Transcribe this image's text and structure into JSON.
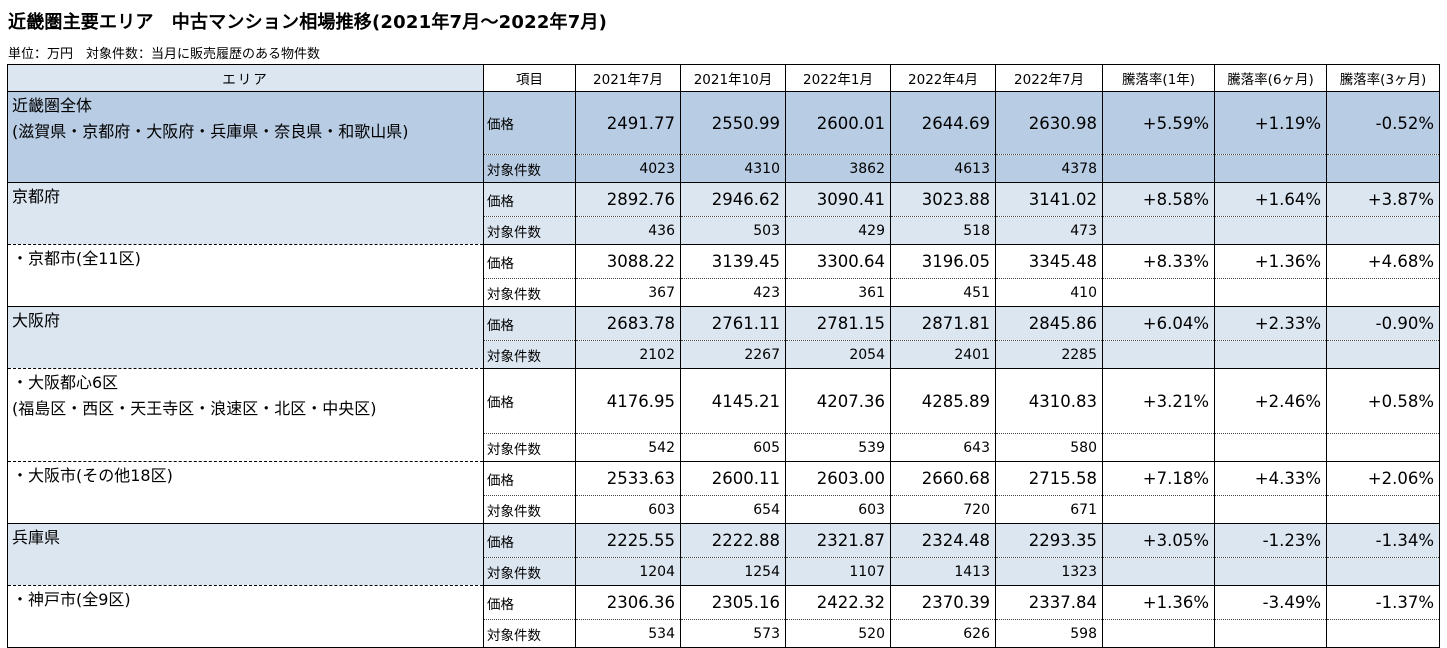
{
  "title": "近畿圏主要エリア　中古マンション相場推移(2021年7月～2022年7月)",
  "subtitle": "単位：万円　対象件数：当月に販売履歴のある物件数",
  "headers": [
    "エリア",
    "項目",
    "2021年7月",
    "2021年10月",
    "2022年1月",
    "2022年4月",
    "2022年7月",
    "騰落率(1年)",
    "騰落率(6ヶ月)",
    "騰落率(3ヶ月)"
  ],
  "price_label": "価格",
  "count_label": "対象件数",
  "regions": [
    {
      "name_lines": [
        "近畿圏全体",
        "(滋賀県・京都府・大阪府・兵庫県・奈良県・和歌山県)"
      ],
      "price": [
        "2491.77",
        "2550.99",
        "2600.01",
        "2644.69",
        "2630.98"
      ],
      "rates": [
        "+5.59%",
        "+1.19%",
        "-0.52%"
      ],
      "counts": [
        "4023",
        "4310",
        "3862",
        "4613",
        "4378"
      ]
    },
    {
      "name_lines": [
        "京都府"
      ],
      "price": [
        "2892.76",
        "2946.62",
        "3090.41",
        "3023.88",
        "3141.02"
      ],
      "rates": [
        "+8.58%",
        "+1.64%",
        "+3.87%"
      ],
      "counts": [
        "436",
        "503",
        "429",
        "518",
        "473"
      ]
    },
    {
      "name_lines": [
        "・京都市(全11区)"
      ],
      "price": [
        "3088.22",
        "3139.45",
        "3300.64",
        "3196.05",
        "3345.48"
      ],
      "rates": [
        "+8.33%",
        "+1.36%",
        "+4.68%"
      ],
      "counts": [
        "367",
        "423",
        "361",
        "451",
        "410"
      ]
    },
    {
      "name_lines": [
        "大阪府"
      ],
      "price": [
        "2683.78",
        "2761.11",
        "2781.15",
        "2871.81",
        "2845.86"
      ],
      "rates": [
        "+6.04%",
        "+2.33%",
        "-0.90%"
      ],
      "counts": [
        "2102",
        "2267",
        "2054",
        "2401",
        "2285"
      ]
    },
    {
      "name_lines": [
        "・大阪都心6区",
        "(福島区・西区・天王寺区・浪速区・北区・中央区)"
      ],
      "price": [
        "4176.95",
        "4145.21",
        "4207.36",
        "4285.89",
        "4310.83"
      ],
      "rates": [
        "+3.21%",
        "+2.46%",
        "+0.58%"
      ],
      "counts": [
        "542",
        "605",
        "539",
        "643",
        "580"
      ]
    },
    {
      "name_lines": [
        "・大阪市(その他18区)"
      ],
      "price": [
        "2533.63",
        "2600.11",
        "2603.00",
        "2660.68",
        "2715.58"
      ],
      "rates": [
        "+7.18%",
        "+4.33%",
        "+2.06%"
      ],
      "counts": [
        "603",
        "654",
        "603",
        "720",
        "671"
      ]
    },
    {
      "name_lines": [
        "兵庫県"
      ],
      "price": [
        "2225.55",
        "2222.88",
        "2321.87",
        "2324.48",
        "2293.35"
      ],
      "rates": [
        "+3.05%",
        "-1.23%",
        "-1.34%"
      ],
      "counts": [
        "1204",
        "1254",
        "1107",
        "1413",
        "1323"
      ]
    },
    {
      "name_lines": [
        "・神戸市(全9区)"
      ],
      "price": [
        "2306.36",
        "2305.16",
        "2422.32",
        "2370.39",
        "2337.84"
      ],
      "rates": [
        "+1.36%",
        "-3.49%",
        "-1.37%"
      ],
      "counts": [
        "534",
        "573",
        "520",
        "626",
        "598"
      ]
    }
  ],
  "colors": {
    "region_all": "#b8cce4",
    "prefecture": "#dce6f1",
    "city": "#ffffff"
  }
}
